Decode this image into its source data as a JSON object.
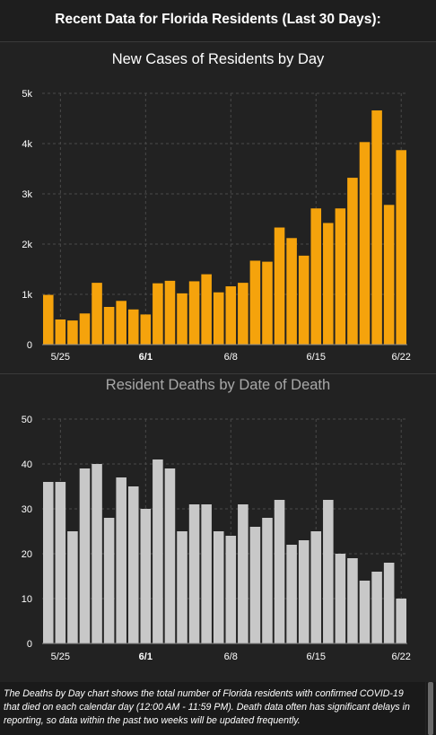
{
  "header": {
    "title": "Recent Data for Florida Residents (Last 30 Days):"
  },
  "footer": {
    "text": "The Deaths by Day chart shows the total number of Florida residents with confirmed COVID-19 that died on each calendar day (12:00 AM - 11:59 PM). Death data often has significant delays in reporting, so data within the past two weeks will be updated frequently."
  },
  "chart_data": [
    {
      "type": "bar",
      "title": "New Cases of Residents by Day",
      "color": "#f5a30c",
      "xlabel": "",
      "ylabel": "",
      "ylim": [
        0,
        5000
      ],
      "yticks": [
        {
          "v": 0,
          "label": "0"
        },
        {
          "v": 1000,
          "label": "1k"
        },
        {
          "v": 2000,
          "label": "2k"
        },
        {
          "v": 3000,
          "label": "3k"
        },
        {
          "v": 4000,
          "label": "4k"
        },
        {
          "v": 5000,
          "label": "5k"
        }
      ],
      "xticks": [
        {
          "i": 1,
          "label": "5/25",
          "bold": false
        },
        {
          "i": 8,
          "label": "6/1",
          "bold": true
        },
        {
          "i": 15,
          "label": "6/8",
          "bold": false
        },
        {
          "i": 22,
          "label": "6/15",
          "bold": false
        },
        {
          "i": 29,
          "label": "6/22",
          "bold": false
        }
      ],
      "values": [
        990,
        500,
        480,
        620,
        1230,
        750,
        870,
        700,
        600,
        1220,
        1270,
        1020,
        1260,
        1400,
        1040,
        1160,
        1230,
        1670,
        1650,
        2330,
        2120,
        1770,
        2710,
        2420,
        2710,
        3320,
        4030,
        4660,
        2780,
        3870
      ],
      "grid": true
    },
    {
      "type": "bar",
      "title": "Resident Deaths by Date of Death",
      "color": "#c8c8c8",
      "xlabel": "",
      "ylabel": "",
      "ylim": [
        0,
        50
      ],
      "yticks": [
        {
          "v": 0,
          "label": "0"
        },
        {
          "v": 10,
          "label": "10"
        },
        {
          "v": 20,
          "label": "20"
        },
        {
          "v": 30,
          "label": "30"
        },
        {
          "v": 40,
          "label": "40"
        },
        {
          "v": 50,
          "label": "50"
        }
      ],
      "xticks": [
        {
          "i": 1,
          "label": "5/25",
          "bold": false
        },
        {
          "i": 8,
          "label": "6/1",
          "bold": true
        },
        {
          "i": 15,
          "label": "6/8",
          "bold": false
        },
        {
          "i": 22,
          "label": "6/15",
          "bold": false
        },
        {
          "i": 29,
          "label": "6/22",
          "bold": false
        }
      ],
      "values": [
        36,
        36,
        25,
        39,
        40,
        28,
        37,
        35,
        30,
        41,
        39,
        25,
        31,
        31,
        25,
        24,
        31,
        26,
        28,
        32,
        22,
        23,
        25,
        32,
        20,
        19,
        14,
        16,
        18,
        10
      ],
      "grid": true
    }
  ]
}
